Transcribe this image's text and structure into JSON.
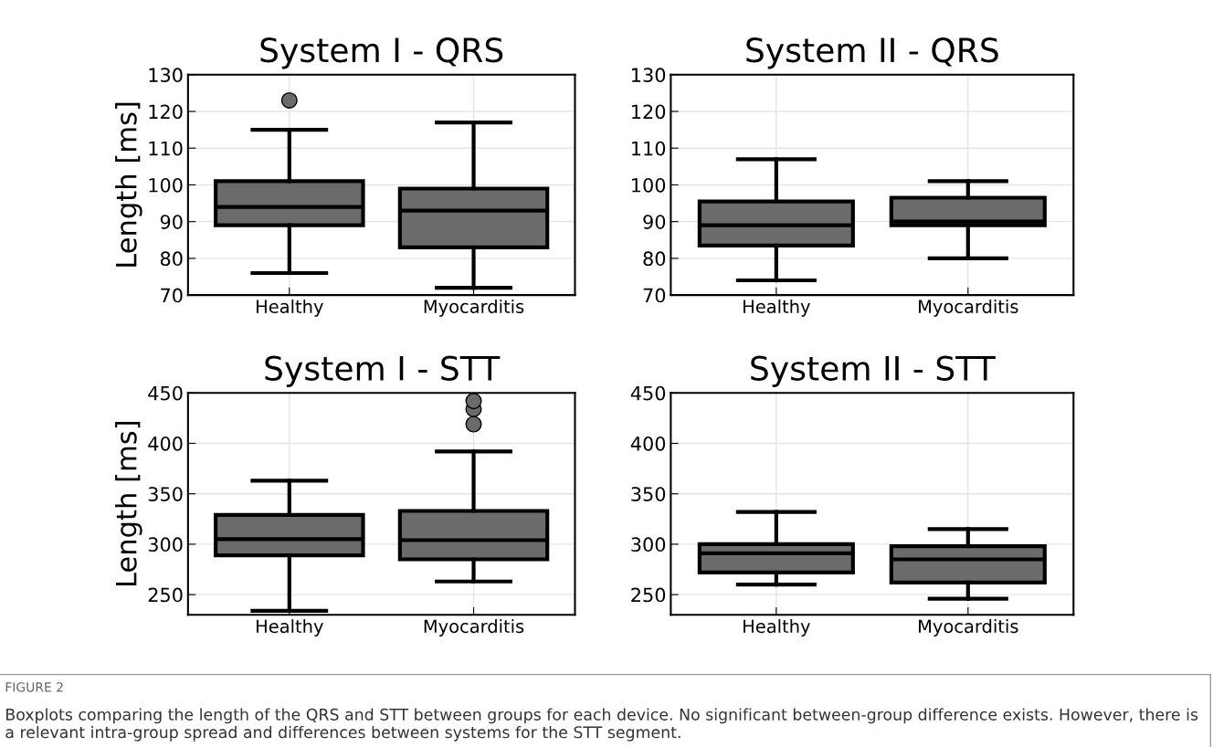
{
  "chart_data": [
    {
      "type": "box",
      "title": "System I - QRS",
      "ylabel": "Length [ms]",
      "categories": [
        "Healthy",
        "Myocarditis"
      ],
      "ylim": [
        70,
        130
      ],
      "yticks": [
        70,
        80,
        90,
        100,
        110,
        120,
        130
      ],
      "grid": true,
      "legend": false,
      "color": "#6b6b6b",
      "boxes": [
        {
          "low": 76,
          "q1": 89,
          "median": 94,
          "q3": 101,
          "high": 115,
          "outliers": [
            123
          ]
        },
        {
          "low": 72,
          "q1": 83,
          "median": 93,
          "q3": 99,
          "high": 117
        }
      ]
    },
    {
      "type": "box",
      "title": "System II - QRS",
      "categories": [
        "Healthy",
        "Myocarditis"
      ],
      "ylim": [
        70,
        130
      ],
      "yticks": [
        70,
        80,
        90,
        100,
        110,
        120,
        130
      ],
      "grid": true,
      "legend": false,
      "color": "#6b6b6b",
      "boxes": [
        {
          "low": 74,
          "q1": 83.5,
          "median": 89,
          "q3": 95.5,
          "high": 107
        },
        {
          "low": 80,
          "q1": 89,
          "median": 90,
          "q3": 96.5,
          "high": 101
        }
      ]
    },
    {
      "type": "box",
      "title": "System I - STT",
      "ylabel": "Length [ms]",
      "categories": [
        "Healthy",
        "Myocarditis"
      ],
      "ylim": [
        230,
        450
      ],
      "yticks": [
        250,
        300,
        350,
        400,
        450
      ],
      "grid": true,
      "legend": false,
      "color": "#6b6b6b",
      "boxes": [
        {
          "low": 234,
          "q1": 289,
          "median": 305,
          "q3": 329,
          "high": 363
        },
        {
          "low": 263,
          "q1": 285,
          "median": 304,
          "q3": 333,
          "high": 392,
          "outliers": [
            419,
            434,
            442
          ]
        }
      ]
    },
    {
      "type": "box",
      "title": "System II - STT",
      "categories": [
        "Healthy",
        "Myocarditis"
      ],
      "ylim": [
        230,
        450
      ],
      "yticks": [
        250,
        300,
        350,
        400,
        450
      ],
      "grid": true,
      "legend": false,
      "color": "#6b6b6b",
      "boxes": [
        {
          "low": 260,
          "q1": 272,
          "median": 291,
          "q3": 300,
          "high": 332
        },
        {
          "low": 246,
          "q1": 262,
          "median": 285,
          "q3": 298,
          "high": 315
        }
      ],
      "annotations": [
        "FIGURE 2",
        "Boxplots comparing the length of the QRS and STT between groups for each device. No significant between-group difference exists. However, there is a relevant intra-group spread and differences between systems for the STT segment."
      ]
    }
  ]
}
